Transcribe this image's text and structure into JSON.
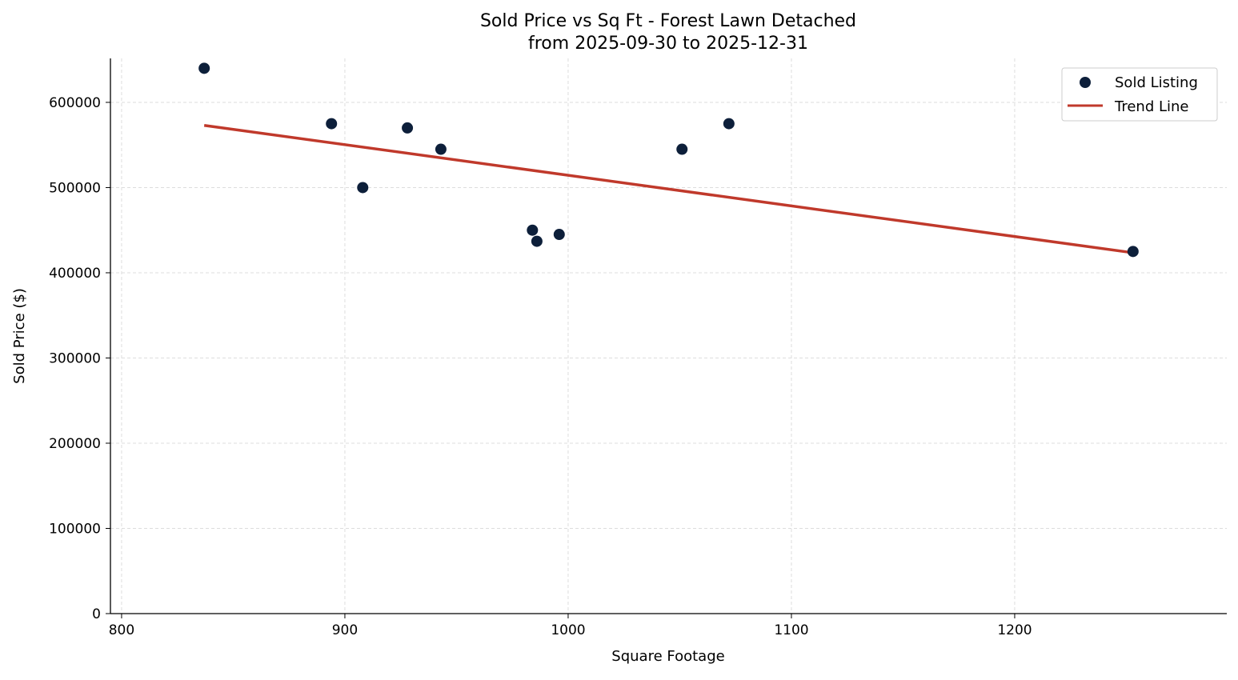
{
  "chart_data": {
    "type": "scatter",
    "title": "Sold Price vs Sq Ft - Forest Lawn Detached",
    "subtitle": "from 2025-09-30 to 2025-12-31",
    "xlabel": "Square Footage",
    "ylabel": "Sold Price ($)",
    "xlim": [
      795,
      1295
    ],
    "ylim": [
      0,
      651600
    ],
    "xticks": [
      800,
      900,
      1000,
      1100,
      1200
    ],
    "yticks": [
      0,
      100000,
      200000,
      300000,
      400000,
      500000,
      600000
    ],
    "grid": true,
    "legend_position": "top-right",
    "series": [
      {
        "name": "Sold Listing",
        "type": "scatter",
        "color": "#0d1f3a",
        "x": [
          837,
          894,
          908,
          928,
          943,
          984,
          986,
          996,
          1051,
          1072,
          1253
        ],
        "y": [
          640000,
          575000,
          500000,
          570000,
          545000,
          450000,
          437000,
          445000,
          545000,
          575000,
          425000
        ]
      },
      {
        "name": "Trend Line",
        "type": "line",
        "color": "#c0392b",
        "x": [
          837,
          1253
        ],
        "y": [
          573000,
          423500
        ]
      }
    ]
  }
}
